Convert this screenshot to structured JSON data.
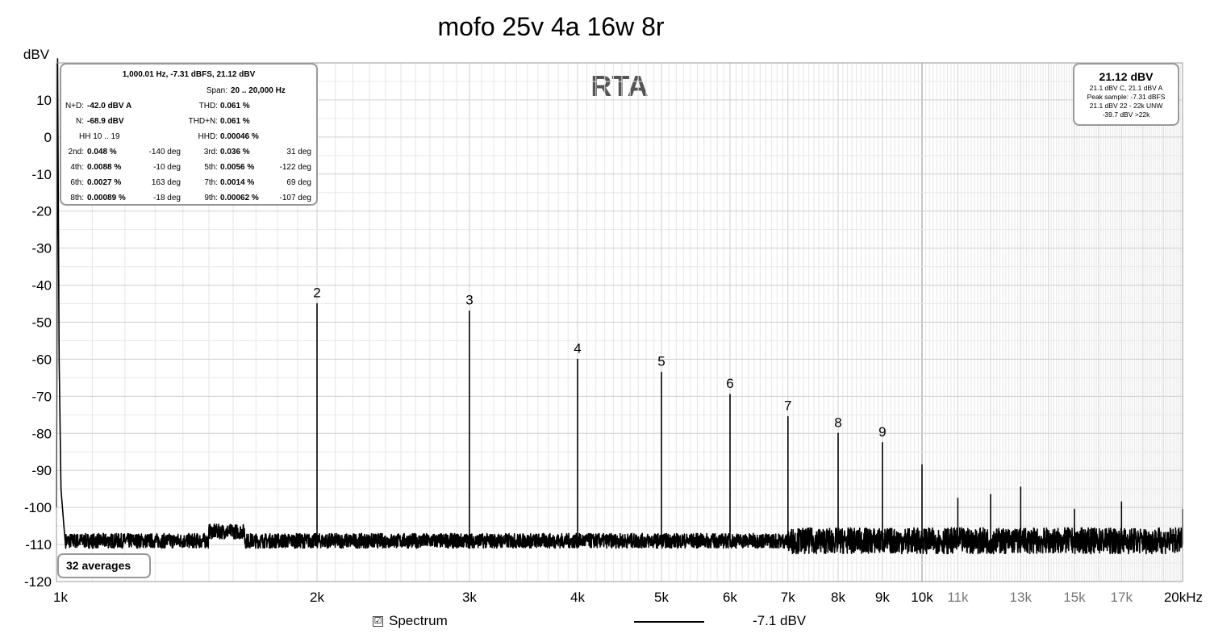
{
  "chart_data": {
    "type": "line",
    "title": "mofo 25v 4a 16w 8r",
    "watermark": "RTA",
    "ylabel": "dBV",
    "xlabel": "",
    "x_scale": "log",
    "xlim": [
      1000,
      20000
    ],
    "ylim": [
      -120,
      20
    ],
    "grid": true,
    "y_ticks": [
      {
        "v": 10,
        "t": "10"
      },
      {
        "v": 0,
        "t": "0"
      },
      {
        "v": -10,
        "t": "-10"
      },
      {
        "v": -20,
        "t": "-20"
      },
      {
        "v": -30,
        "t": "-30"
      },
      {
        "v": -40,
        "t": "-40"
      },
      {
        "v": -50,
        "t": "-50"
      },
      {
        "v": -60,
        "t": "-60"
      },
      {
        "v": -70,
        "t": "-70"
      },
      {
        "v": -80,
        "t": "-80"
      },
      {
        "v": -90,
        "t": "-90"
      },
      {
        "v": -100,
        "t": "-100"
      },
      {
        "v": -110,
        "t": "-110"
      },
      {
        "v": -120,
        "t": "-120"
      }
    ],
    "x_ticks": [
      {
        "v": 1000,
        "t": "1k",
        "major": true
      },
      {
        "v": 2000,
        "t": "2k",
        "major": true
      },
      {
        "v": 3000,
        "t": "3k",
        "major": true
      },
      {
        "v": 4000,
        "t": "4k",
        "major": true
      },
      {
        "v": 5000,
        "t": "5k",
        "major": true
      },
      {
        "v": 6000,
        "t": "6k",
        "major": true
      },
      {
        "v": 7000,
        "t": "7k",
        "major": true
      },
      {
        "v": 8000,
        "t": "8k",
        "major": true
      },
      {
        "v": 9000,
        "t": "9k",
        "major": true
      },
      {
        "v": 10000,
        "t": "10k",
        "major": true
      },
      {
        "v": 11000,
        "t": "11k",
        "major": false
      },
      {
        "v": 13000,
        "t": "13k",
        "major": false
      },
      {
        "v": 15000,
        "t": "15k",
        "major": false
      },
      {
        "v": 17000,
        "t": "17k",
        "major": false
      },
      {
        "v": 20000,
        "t": "20kHz",
        "major": true
      }
    ],
    "fundamental": {
      "x": 1000,
      "y": 21.12
    },
    "noise_floor": -109,
    "harmonics": [
      {
        "n": "2",
        "x": 2000,
        "y": -45
      },
      {
        "n": "3",
        "x": 3000,
        "y": -47
      },
      {
        "n": "4",
        "x": 4000,
        "y": -60
      },
      {
        "n": "5",
        "x": 5000,
        "y": -63.5
      },
      {
        "n": "6",
        "x": 6000,
        "y": -69.5
      },
      {
        "n": "7",
        "x": 7000,
        "y": -75.5
      },
      {
        "n": "8",
        "x": 8000,
        "y": -80
      },
      {
        "n": "9",
        "x": 9000,
        "y": -82.5
      }
    ],
    "spurs": [
      {
        "x": 10000,
        "y": -88.5
      },
      {
        "x": 11000,
        "y": -97.5
      },
      {
        "x": 12000,
        "y": -96.5
      },
      {
        "x": 13000,
        "y": -94.5
      },
      {
        "x": 15000,
        "y": -100.5
      },
      {
        "x": 17000,
        "y": -98.5
      },
      {
        "x": 20000,
        "y": -100.5
      }
    ],
    "series": [
      {
        "name": "Spectrum",
        "value_label": "-7.1 dBV",
        "color": "#000000"
      }
    ]
  },
  "info": {
    "header": "1,000.01 Hz, -7.31 dBFS, 21.12 dBV",
    "span_label": "Span:",
    "span_value": "20 .. 20,000 Hz",
    "nd_label": "N+D:",
    "nd_value": "-42.0 dBV A",
    "thd_label": "THD:",
    "thd_value": "0.061 %",
    "n_label": "N:",
    "n_value": "-68.9 dBV",
    "thdn_label": "THD+N:",
    "thdn_value": "0.061 %",
    "hh_label": "HH 10 .. 19",
    "hhd_label": "HHD:",
    "hhd_value": "0.00046 %",
    "rows": [
      {
        "l1": "2nd:",
        "v1": "0.048 %",
        "d1": "-140 deg",
        "l2": "3rd:",
        "v2": "0.036 %",
        "d2": "31 deg"
      },
      {
        "l1": "4th:",
        "v1": "0.0088 %",
        "d1": "-10 deg",
        "l2": "5th:",
        "v2": "0.0056 %",
        "d2": "-122 deg"
      },
      {
        "l1": "6th:",
        "v1": "0.0027 %",
        "d1": "163 deg",
        "l2": "7th:",
        "v2": "0.0014 %",
        "d2": "69 deg"
      },
      {
        "l1": "8th:",
        "v1": "0.00089 %",
        "d1": "-18 deg",
        "l2": "9th:",
        "v2": "0.00062 %",
        "d2": "-107 deg"
      }
    ]
  },
  "peak": {
    "value": "21.12 dBV",
    "line1": "21.1 dBV C, 21.1 dBV A",
    "line2": "Peak sample: -7.31 dBFS",
    "line3": "21.1 dBV 22 - 22k UNW",
    "line4": "-39.7 dBV >22k"
  },
  "averages": "32 averages",
  "legend": {
    "checkbox": "☑",
    "label": "Spectrum",
    "value": "-7.1 dBV"
  }
}
